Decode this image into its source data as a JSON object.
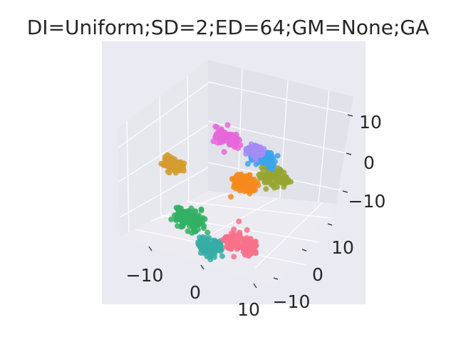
{
  "chart_data": {
    "type": "scatter3d",
    "title": "DI=Uniform;SD=2;ED=64;GM=None;GA",
    "axes": {
      "x": {
        "ticks": [
          -10,
          0,
          10
        ],
        "tick_labels": [
          "−10",
          "0",
          "10"
        ]
      },
      "y": {
        "ticks": [
          -10,
          0,
          10
        ],
        "tick_labels": [
          "−10",
          "0",
          "10"
        ]
      },
      "z": {
        "ticks": [
          -10,
          0,
          10
        ],
        "tick_labels": [
          "−10",
          "0",
          "10"
        ]
      }
    },
    "grid": true,
    "series": [
      {
        "color": "#f48a1c",
        "cluster": {
          "x": 2,
          "y": 3,
          "z": 0,
          "spread": 2.5
        },
        "points": 90,
        "color_note": "orange-brown"
      },
      {
        "color": "#d39c2f",
        "cluster": {
          "x": -14,
          "y": 4,
          "z": -4,
          "spread": 1.8
        },
        "points": 90
      },
      {
        "color": "#33b063",
        "cluster": {
          "x": -4,
          "y": -6,
          "z": -7,
          "spread": 3.0
        },
        "points": 110
      },
      {
        "color": "#36ada4",
        "cluster": {
          "x": 2,
          "y": -8,
          "z": -10,
          "spread": 2.4
        },
        "points": 100
      },
      {
        "color": "#f77189",
        "cluster": {
          "x": 7,
          "y": -6,
          "z": -8,
          "spread": 3.2
        },
        "points": 110
      },
      {
        "color": "#97a431",
        "cluster": {
          "x": 6,
          "y": 6,
          "z": 2,
          "spread": 2.6
        },
        "points": 100
      },
      {
        "color": "#3ba3ec",
        "cluster": {
          "x": 2,
          "y": 8,
          "z": 4,
          "spread": 2.2
        },
        "points": 80
      },
      {
        "color": "#a48cf4",
        "cluster": {
          "x": -1,
          "y": 10,
          "z": 3,
          "spread": 1.4
        },
        "points": 80
      },
      {
        "color": "#e866db",
        "cluster": {
          "x": -5,
          "y": 7,
          "z": 6,
          "spread": 2.4
        },
        "points": 90
      }
    ]
  }
}
